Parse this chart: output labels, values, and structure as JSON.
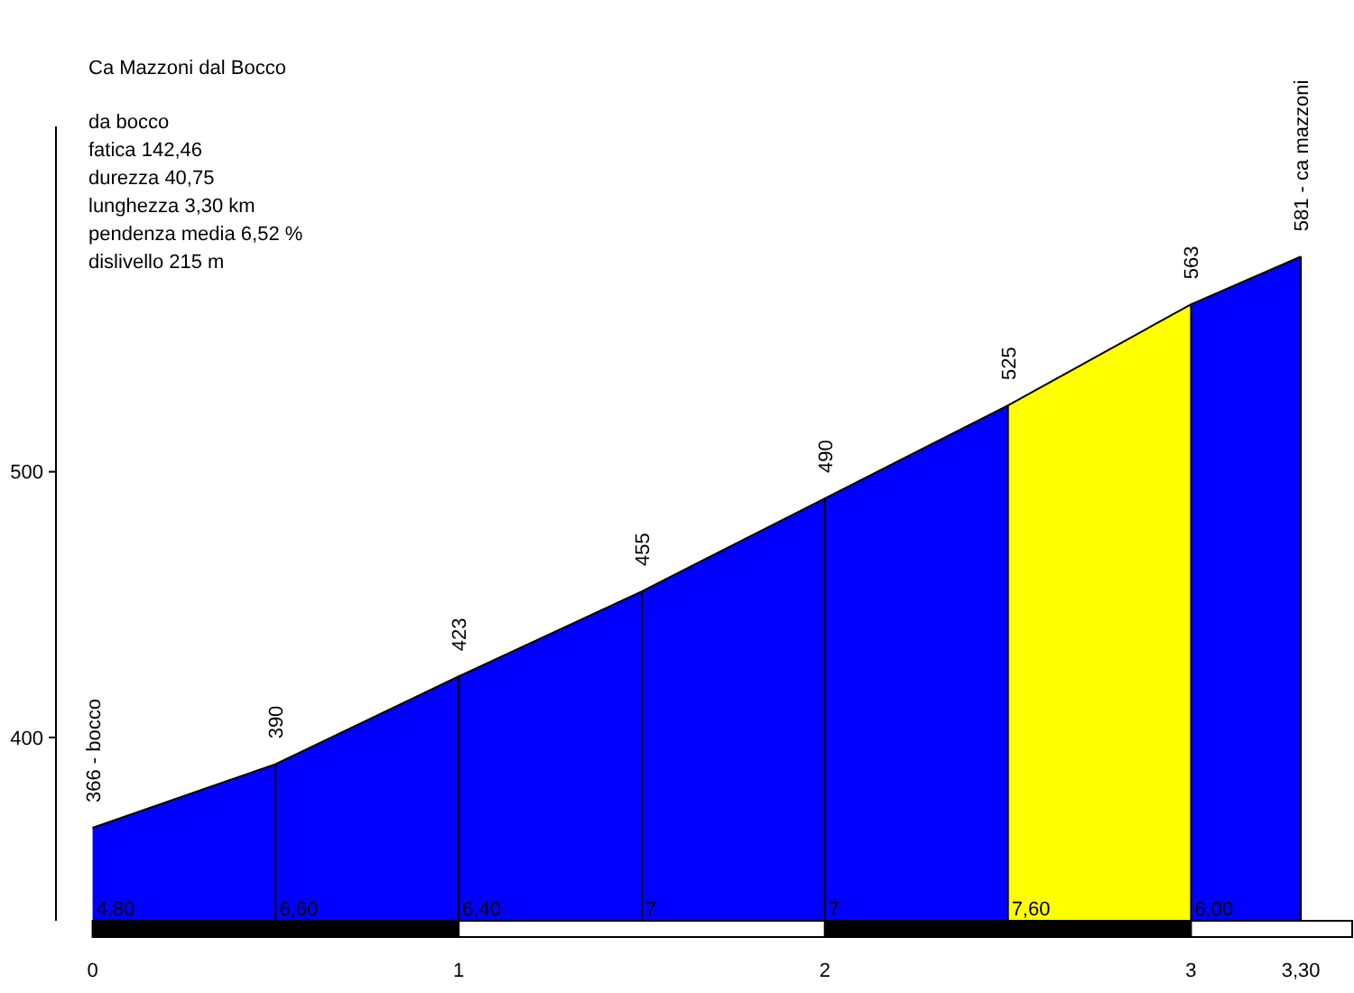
{
  "chart_data": {
    "type": "area",
    "title": "Ca Mazzoni dal Bocco",
    "annotations": [
      "da bocco",
      "fatica 142,46",
      "durezza 40,75",
      "lunghezza 3,30 km",
      "pendenza media 6,52 %",
      "dislivello 215 m",
      {
        "text": "4,80",
        "x": 0,
        "y": 331
      },
      {
        "text": "6,60",
        "x": 0.5,
        "y": 331
      },
      {
        "text": "6,40",
        "x": 1,
        "y": 331
      },
      {
        "text": "7",
        "x": 1.5,
        "y": 331
      },
      {
        "text": "7",
        "x": 2,
        "y": 331
      },
      {
        "text": "7,60",
        "x": 2.5,
        "y": 331
      },
      {
        "text": "6,00",
        "x": 3,
        "y": 331
      }
    ],
    "x": [
      0,
      0.5,
      1,
      1.5,
      2,
      2.5,
      3,
      3.3
    ],
    "values": [
      366,
      390,
      423,
      455,
      490,
      525,
      563,
      581
    ],
    "value_labels": [
      "366 - bocco",
      "390",
      "423",
      "455",
      "490",
      "525",
      "563",
      "581 - ca mazzoni"
    ],
    "color": "#0000ff",
    "bands": [
      {
        "axis": "x",
        "from": 2.5,
        "to": 3,
        "color": "#ffff00"
      }
    ],
    "xlim": [
      -0.1,
      3.45
    ],
    "xticks": [
      0,
      1,
      2,
      3,
      {
        "value": 3.3,
        "label": "3,30"
      }
    ],
    "ylim": [
      331,
      630
    ],
    "yticks": [
      400,
      500
    ]
  }
}
